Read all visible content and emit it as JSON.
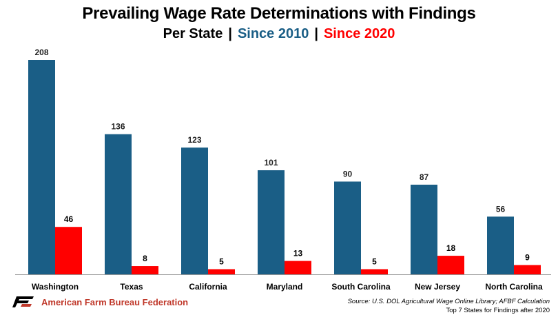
{
  "chart_data": {
    "type": "bar",
    "title": "Prevailing Wage Rate Determinations with Findings",
    "subtitle": {
      "prefix": "Per State",
      "separator": "|",
      "series_labels": [
        "Since 2010",
        "Since 2020"
      ]
    },
    "categories": [
      "Washington",
      "Texas",
      "California",
      "Maryland",
      "South Carolina",
      "New Jersey",
      "North Carolina"
    ],
    "series": [
      {
        "name": "Since 2010",
        "color": "#1a5e86",
        "values": [
          208,
          136,
          123,
          101,
          90,
          87,
          56
        ]
      },
      {
        "name": "Since 2020",
        "color": "#ff0000",
        "values": [
          46,
          8,
          5,
          13,
          5,
          18,
          9
        ]
      }
    ],
    "ylim": [
      0,
      208
    ],
    "grid": false,
    "legend": "subtitle"
  },
  "footer": {
    "logo_icon": "afbf-logo-icon",
    "organization": "American Farm Bureau Federation",
    "source": "Source: U.S. DOL Agricultural Wage Online Library; AFBF Calculation",
    "note": "Top 7 States for Findings after 2020"
  }
}
